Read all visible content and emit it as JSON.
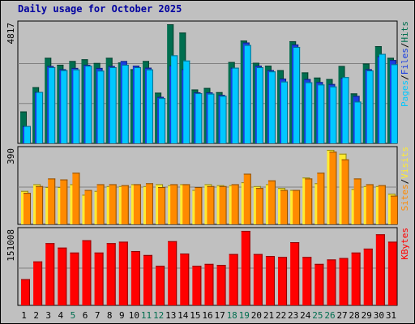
{
  "title": "Daily usage for October 2025",
  "colors": {
    "hits": "#006e4f",
    "files": "#1a3ee0",
    "pages": "#00c8ff",
    "visits": "#ffeb30",
    "sites": "#ff8a00",
    "kbytes": "#ff0000",
    "weekend_label": "#006e4f",
    "plot_bg": "#c0c0c0",
    "grid": "#808080",
    "title": "#0000a0"
  },
  "chart_data": [
    {
      "type": "bar",
      "panel": "hits-files-pages",
      "ymax_label": "4817",
      "ymax": 4817,
      "legend": [
        {
          "text": "Pages",
          "color": "#00c8ff"
        },
        {
          "text": "/",
          "color": "#000000"
        },
        {
          "text": "Files",
          "color": "#1a3ee0"
        },
        {
          "text": "/",
          "color": "#000000"
        },
        {
          "text": "Hits",
          "color": "#006e4f"
        }
      ],
      "categories": [
        "1",
        "2",
        "3",
        "4",
        "5",
        "6",
        "7",
        "8",
        "9",
        "10",
        "11",
        "12",
        "13",
        "14",
        "15",
        "16",
        "17",
        "18",
        "19",
        "20",
        "21",
        "22",
        "23",
        "24",
        "25",
        "26",
        "27",
        "28",
        "29",
        "30",
        "31"
      ],
      "series": [
        {
          "name": "Hits",
          "values": [
            1290,
            2270,
            3460,
            3180,
            3330,
            3400,
            3250,
            3460,
            3270,
            3000,
            3330,
            2050,
            4817,
            4480,
            2180,
            2240,
            2070,
            3290,
            4160,
            3260,
            3140,
            2960,
            4130,
            2870,
            2660,
            2600,
            3130,
            2020,
            3230,
            3930,
            3460
          ]
        },
        {
          "name": "Files",
          "values": [
            700,
            2080,
            3130,
            3000,
            3050,
            3180,
            3050,
            3130,
            3330,
            3140,
            3060,
            1880,
            3150,
            3000,
            2060,
            2060,
            1960,
            3060,
            4080,
            3140,
            2960,
            2620,
            4000,
            2600,
            2480,
            2400,
            2650,
            1920,
            3000,
            3520,
            3370
          ]
        },
        {
          "name": "Pages",
          "values": [
            700,
            2080,
            3080,
            2960,
            2990,
            3140,
            2940,
            3080,
            3180,
            3080,
            2990,
            1830,
            3560,
            3350,
            2030,
            2010,
            1920,
            3060,
            3980,
            3080,
            2910,
            2500,
            3900,
            2470,
            2380,
            2300,
            2680,
            1690,
            2950,
            3620,
            3200
          ]
        }
      ]
    },
    {
      "type": "bar",
      "panel": "visits-sites",
      "ymax_label": "390",
      "ymax": 390,
      "legend": [
        {
          "text": "Sites",
          "color": "#ff8a00"
        },
        {
          "text": "/",
          "color": "#000000"
        },
        {
          "text": "Visits",
          "color": "#ffeb30"
        }
      ],
      "categories": [
        "1",
        "2",
        "3",
        "4",
        "5",
        "6",
        "7",
        "8",
        "9",
        "10",
        "11",
        "12",
        "13",
        "14",
        "15",
        "16",
        "17",
        "18",
        "19",
        "20",
        "21",
        "22",
        "23",
        "24",
        "25",
        "26",
        "27",
        "28",
        "29",
        "30",
        "31"
      ],
      "series": [
        {
          "name": "Visits",
          "values": [
            175,
            210,
            195,
            195,
            210,
            155,
            175,
            200,
            200,
            210,
            200,
            210,
            205,
            210,
            180,
            210,
            205,
            205,
            220,
            200,
            210,
            190,
            180,
            245,
            215,
            390,
            370,
            185,
            200,
            200,
            160
          ]
        },
        {
          "name": "Sites",
          "values": [
            165,
            200,
            240,
            235,
            270,
            180,
            210,
            210,
            205,
            210,
            215,
            195,
            210,
            210,
            195,
            200,
            200,
            210,
            265,
            190,
            230,
            180,
            180,
            240,
            270,
            380,
            340,
            240,
            210,
            205,
            150
          ]
        }
      ]
    },
    {
      "type": "bar",
      "panel": "kbytes",
      "ymax_label": "151008",
      "ymax": 151008,
      "legend": [
        {
          "text": "KBytes",
          "color": "#ff0000"
        }
      ],
      "categories": [
        "1",
        "2",
        "3",
        "4",
        "5",
        "6",
        "7",
        "8",
        "9",
        "10",
        "11",
        "12",
        "13",
        "14",
        "15",
        "16",
        "17",
        "18",
        "19",
        "20",
        "21",
        "22",
        "23",
        "24",
        "25",
        "26",
        "27",
        "28",
        "29",
        "30",
        "31"
      ],
      "series": [
        {
          "name": "KBytes",
          "values": [
            53000,
            89000,
            126000,
            117000,
            107000,
            132000,
            107000,
            126000,
            129000,
            110000,
            102000,
            80000,
            130000,
            105000,
            80000,
            84000,
            82000,
            104000,
            151008,
            104000,
            100000,
            98000,
            128000,
            98000,
            84000,
            93000,
            96000,
            107000,
            115000,
            144000,
            129000
          ]
        }
      ]
    }
  ],
  "weekend_days": [
    5,
    11,
    12,
    18,
    19,
    25,
    26
  ]
}
